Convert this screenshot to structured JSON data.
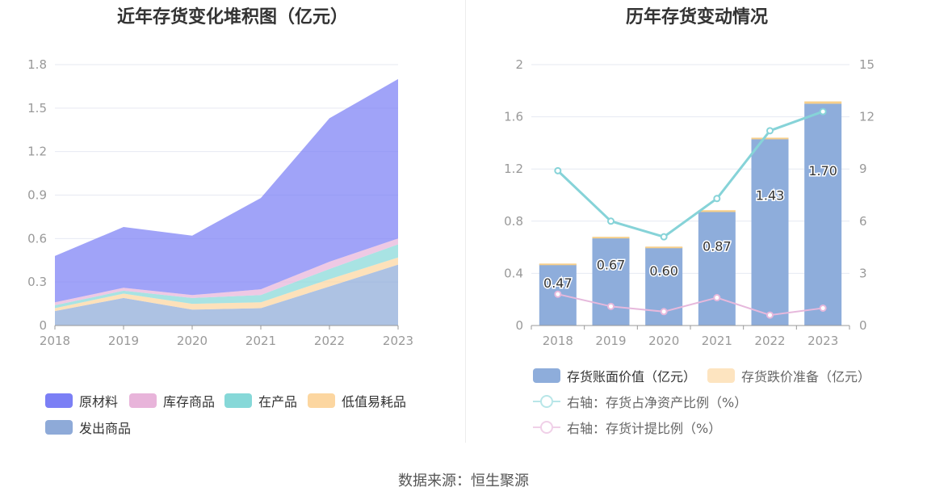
{
  "source_text": "数据来源：恒生聚源",
  "chart_data": [
    {
      "type": "area",
      "stacked": true,
      "title": "近年存货变化堆积图（亿元）",
      "x": [
        "2018",
        "2019",
        "2020",
        "2021",
        "2022",
        "2023"
      ],
      "ylim": [
        0,
        1.8
      ],
      "yticks": [
        "0",
        "0.3",
        "0.6",
        "0.9",
        "1.2",
        "1.5",
        "1.8"
      ],
      "grid": true,
      "legend_position": "bottom",
      "series": [
        {
          "name": "原材料",
          "color": "#7b7ff5",
          "values": [
            0.32,
            0.42,
            0.41,
            0.63,
            0.99,
            1.1
          ]
        },
        {
          "name": "库存商品",
          "color": "#e8b4da",
          "values": [
            0.02,
            0.02,
            0.02,
            0.04,
            0.05,
            0.04
          ]
        },
        {
          "name": "在产品",
          "color": "#86d8d8",
          "values": [
            0.02,
            0.02,
            0.04,
            0.05,
            0.07,
            0.09
          ]
        },
        {
          "name": "低值易耗品",
          "color": "#fcd6a0",
          "values": [
            0.02,
            0.03,
            0.04,
            0.04,
            0.05,
            0.05
          ]
        },
        {
          "name": "发出商品",
          "color": "#8eaad8",
          "values": [
            0.1,
            0.19,
            0.11,
            0.12,
            0.27,
            0.42
          ]
        }
      ]
    },
    {
      "type": "bar",
      "title": "历年存货变动情况",
      "categories": [
        "2018",
        "2019",
        "2020",
        "2021",
        "2022",
        "2023"
      ],
      "ylim": [
        0,
        2
      ],
      "yticks": [
        "0",
        "0.4",
        "0.8",
        "1.2",
        "1.6",
        "2"
      ],
      "y2lim": [
        0,
        15
      ],
      "y2ticks": [
        "0",
        "3",
        "6",
        "9",
        "12",
        "15"
      ],
      "grid": true,
      "legend_position": "bottom",
      "series": [
        {
          "name": "存货账面价值（亿元）",
          "type": "bar",
          "color": "#8eaddb",
          "values": [
            0.47,
            0.67,
            0.6,
            0.87,
            1.43,
            1.7
          ],
          "labels": [
            "0.47",
            "0.67",
            "0.60",
            "0.87",
            "1.43",
            "1.70"
          ]
        },
        {
          "name": "存货跌价准备（亿元）",
          "type": "bar",
          "stacked": true,
          "color": "#fde4c0",
          "values": [
            0.005,
            0.01,
            0.005,
            0.014,
            0.01,
            0.018
          ]
        },
        {
          "name": "右轴：存货占净资产比例（%）",
          "type": "line",
          "axis": "right",
          "color": "#86d3d8",
          "values": [
            8.9,
            6.0,
            5.1,
            7.3,
            11.2,
            12.3
          ]
        },
        {
          "name": "右轴：存货计提比例（%）",
          "type": "line",
          "axis": "right",
          "color": "#e6b8dc",
          "values": [
            1.8,
            1.1,
            0.8,
            1.6,
            0.6,
            1.0
          ]
        }
      ]
    }
  ]
}
